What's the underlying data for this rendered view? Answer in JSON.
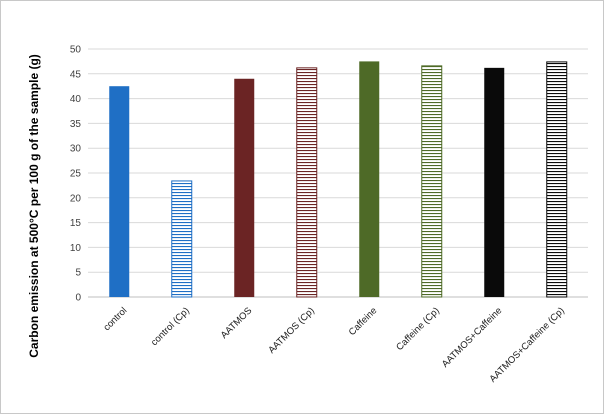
{
  "chart_data": {
    "type": "bar",
    "title": "",
    "xlabel": "",
    "ylabel": "Carbon emission at 500°C per 100 g of the sample (g)",
    "ylim": [
      0,
      50
    ],
    "yticks": [
      0,
      5,
      10,
      15,
      20,
      25,
      30,
      35,
      40,
      45,
      50
    ],
    "grid": true,
    "legend": "none",
    "categories": [
      "control",
      "control (Cp)",
      "AATMOS",
      "AATMOS (Cp)",
      "Caffeine",
      "Caffeine (Cp)",
      "AATMOS+Caffeine",
      "AATMOS+Caffeine (Cp)"
    ],
    "values": [
      42.5,
      23.4,
      44.0,
      46.2,
      47.5,
      46.6,
      46.2,
      47.4
    ],
    "bar_styles": [
      {
        "color": "#1f6fc5",
        "fill": "solid"
      },
      {
        "color": "#1f6fc5",
        "fill": "horizontal-stripes"
      },
      {
        "color": "#6b2424",
        "fill": "solid"
      },
      {
        "color": "#6b2424",
        "fill": "horizontal-stripes"
      },
      {
        "color": "#4e6a27",
        "fill": "solid"
      },
      {
        "color": "#4e6a27",
        "fill": "horizontal-stripes"
      },
      {
        "color": "#0a0a0a",
        "fill": "solid"
      },
      {
        "color": "#0a0a0a",
        "fill": "horizontal-stripes"
      }
    ]
  }
}
